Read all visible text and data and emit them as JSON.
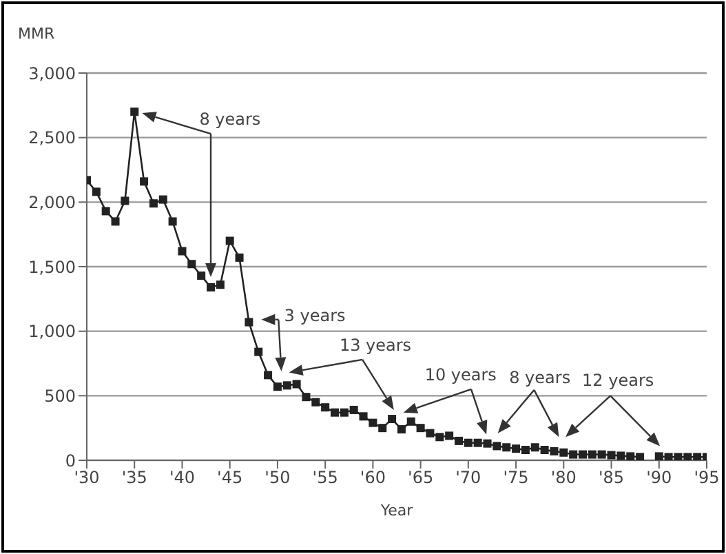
{
  "chart_data": {
    "type": "line",
    "ylabel": "MMR",
    "xlabel": "Year",
    "x": [
      1930,
      1931,
      1932,
      1933,
      1934,
      1935,
      1936,
      1937,
      1938,
      1939,
      1940,
      1941,
      1942,
      1943,
      1944,
      1945,
      1946,
      1947,
      1948,
      1949,
      1950,
      1951,
      1952,
      1953,
      1954,
      1955,
      1956,
      1957,
      1958,
      1959,
      1960,
      1961,
      1962,
      1963,
      1964,
      1965,
      1966,
      1967,
      1968,
      1969,
      1970,
      1971,
      1972,
      1973,
      1974,
      1975,
      1976,
      1977,
      1978,
      1979,
      1980,
      1981,
      1982,
      1983,
      1984,
      1985,
      1986,
      1987,
      1988,
      1989,
      1990,
      1991,
      1992,
      1993,
      1994,
      1995
    ],
    "series": [
      {
        "color": "#222222",
        "values": [
          2170,
          2080,
          1930,
          1850,
          2010,
          2700,
          2160,
          1990,
          2020,
          1850,
          1620,
          1520,
          1430,
          1340,
          1360,
          1700,
          1570,
          1070,
          840,
          660,
          570,
          580,
          590,
          490,
          450,
          410,
          370,
          370,
          390,
          340,
          290,
          250,
          320,
          240,
          300,
          250,
          210,
          180,
          190,
          150,
          135,
          135,
          130,
          110,
          100,
          90,
          80,
          100,
          80,
          70,
          60,
          45,
          45,
          45,
          45,
          40,
          35,
          30,
          25,
          null,
          30,
          25,
          25,
          25,
          25,
          25
        ]
      }
    ],
    "xlim": [
      1930,
      1995
    ],
    "xticks": [
      {
        "value": 1930,
        "label": "'30"
      },
      {
        "value": 1935,
        "label": "'35"
      },
      {
        "value": 1940,
        "label": "'40"
      },
      {
        "value": 1945,
        "label": "'45"
      },
      {
        "value": 1950,
        "label": "'50"
      },
      {
        "value": 1955,
        "label": "'55"
      },
      {
        "value": 1960,
        "label": "'60"
      },
      {
        "value": 1965,
        "label": "'65"
      },
      {
        "value": 1970,
        "label": "'70"
      },
      {
        "value": 1975,
        "label": "'75"
      },
      {
        "value": 1980,
        "label": "'80"
      },
      {
        "value": 1985,
        "label": "'85"
      },
      {
        "value": 1990,
        "label": "'90"
      },
      {
        "value": 1995,
        "label": "'95"
      }
    ],
    "ylim": [
      0,
      3000
    ],
    "yticks": [
      0,
      {
        "value": 500,
        "label": "500"
      },
      {
        "value": 1000,
        "label": "1,000"
      },
      {
        "value": 1500,
        "label": "1,500"
      },
      {
        "value": 2000,
        "label": "2,000"
      },
      {
        "value": 2500,
        "label": "2,500"
      },
      {
        "value": 3000,
        "label": "3,000"
      }
    ],
    "grid": "y",
    "marker": "square",
    "line_style": "solid",
    "legend": false,
    "annotations": [
      "8 years",
      "3 years",
      "13 years",
      "10 years",
      "8 years",
      "12 years"
    ]
  }
}
